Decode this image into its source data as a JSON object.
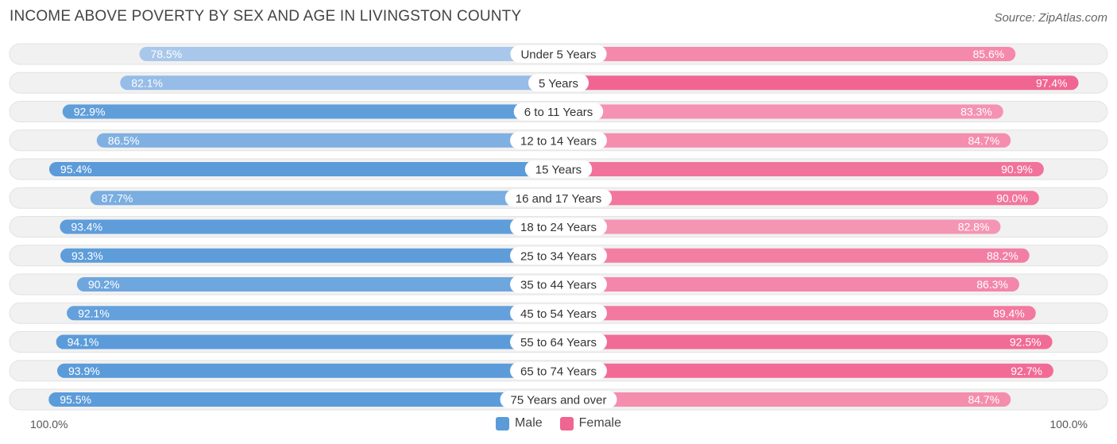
{
  "title": "INCOME ABOVE POVERTY BY SEX AND AGE IN LIVINGSTON COUNTY",
  "source": "Source: ZipAtlas.com",
  "colors": {
    "male_dark": "#5b9bd9",
    "male_light": "#aac8ec",
    "female_dark": "#f06592",
    "female_light": "#f7a9c3",
    "track": "#eeeeee"
  },
  "legend": {
    "male": "Male",
    "female": "Female"
  },
  "axis": {
    "left_label": "100.0%",
    "right_label": "100.0%"
  },
  "chart_data": {
    "type": "bar",
    "orientation": "horizontal-diverging",
    "title": "INCOME ABOVE POVERTY BY SEX AND AGE IN LIVINGSTON COUNTY",
    "categories": [
      "Under 5 Years",
      "5 Years",
      "6 to 11 Years",
      "12 to 14 Years",
      "15 Years",
      "16 and 17 Years",
      "18 to 24 Years",
      "25 to 34 Years",
      "35 to 44 Years",
      "45 to 54 Years",
      "55 to 64 Years",
      "65 to 74 Years",
      "75 Years and over"
    ],
    "series": [
      {
        "name": "Male",
        "values": [
          78.5,
          82.1,
          92.9,
          86.5,
          95.4,
          87.7,
          93.4,
          93.3,
          90.2,
          92.1,
          94.1,
          93.9,
          95.5
        ],
        "labels": [
          "78.5%",
          "82.1%",
          "92.9%",
          "86.5%",
          "95.4%",
          "87.7%",
          "93.4%",
          "93.3%",
          "90.2%",
          "92.1%",
          "94.1%",
          "93.9%",
          "95.5%"
        ]
      },
      {
        "name": "Female",
        "values": [
          85.6,
          97.4,
          83.3,
          84.7,
          90.9,
          90.0,
          82.8,
          88.2,
          86.3,
          89.4,
          92.5,
          92.7,
          84.7
        ],
        "labels": [
          "85.6%",
          "97.4%",
          "83.3%",
          "84.7%",
          "90.9%",
          "90.0%",
          "82.8%",
          "88.2%",
          "86.3%",
          "89.4%",
          "92.5%",
          "92.7%",
          "84.7%"
        ]
      }
    ],
    "xlim": [
      0,
      100
    ],
    "xlabel_left": "100.0%",
    "xlabel_right": "100.0%",
    "legend_position": "bottom-center"
  }
}
